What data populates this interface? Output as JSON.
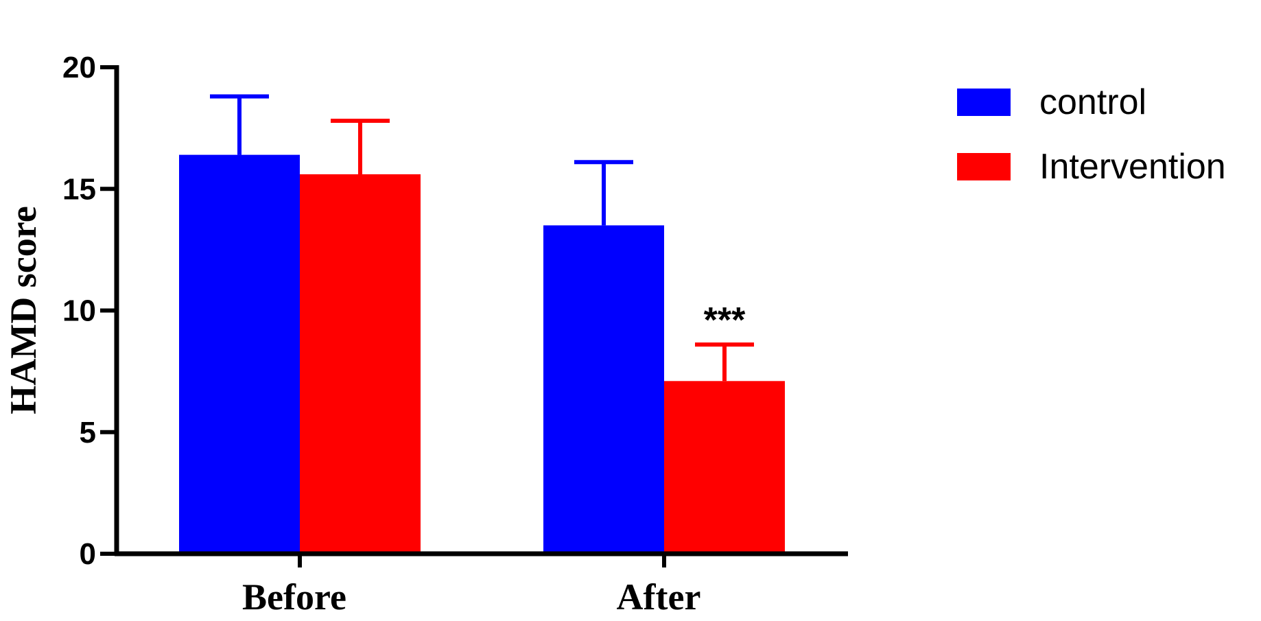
{
  "chart_data": {
    "type": "bar",
    "categories": [
      "Before",
      "After"
    ],
    "series": [
      {
        "name": "control",
        "color": "#0000ff",
        "values": [
          16.4,
          13.5
        ],
        "errors": [
          2.4,
          2.6
        ]
      },
      {
        "name": "Intervention",
        "color": "#ff0000",
        "values": [
          15.6,
          7.1
        ],
        "errors": [
          2.2,
          1.5
        ]
      }
    ],
    "title": "",
    "xlabel": "",
    "ylabel": "HAMD score",
    "ylim": [
      0,
      20
    ],
    "yticks": [
      "0",
      "5",
      "10",
      "15",
      "20"
    ],
    "annotations": [
      {
        "category": "After",
        "series": "Intervention",
        "text": "***"
      }
    ],
    "legend": "top-right",
    "grid": false
  }
}
